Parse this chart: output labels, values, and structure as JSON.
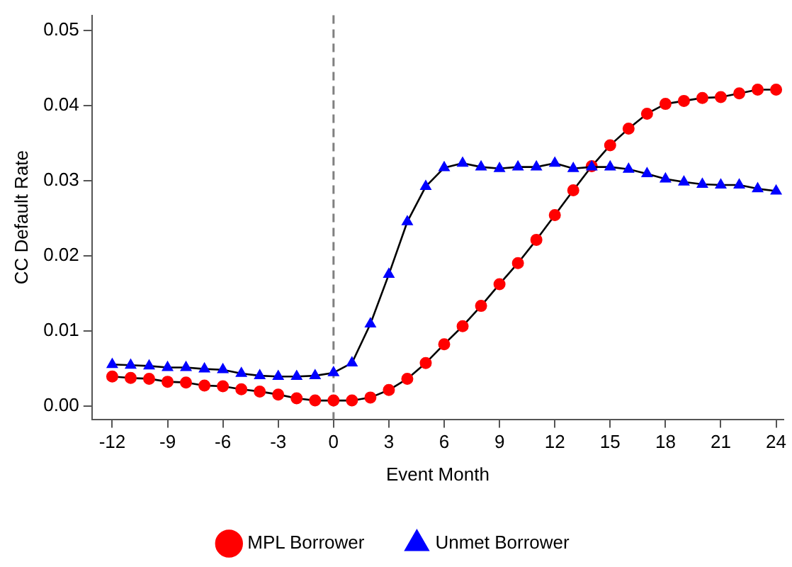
{
  "chart_data": {
    "type": "line",
    "xlabel": "Event Month",
    "ylabel": "CC Default Rate",
    "x": [
      -12,
      -11,
      -10,
      -9,
      -8,
      -7,
      -6,
      -5,
      -4,
      -3,
      -2,
      -1,
      0,
      1,
      2,
      3,
      4,
      5,
      6,
      7,
      8,
      9,
      10,
      11,
      12,
      13,
      14,
      15,
      16,
      17,
      18,
      19,
      20,
      21,
      22,
      23,
      24
    ],
    "series": [
      {
        "name": "MPL Borrower",
        "color": "#ff0000",
        "marker": "circle",
        "values": [
          0.0039,
          0.0037,
          0.0036,
          0.0032,
          0.0031,
          0.0027,
          0.0026,
          0.0022,
          0.0019,
          0.0015,
          0.001,
          0.0007,
          0.0007,
          0.0007,
          0.0011,
          0.0021,
          0.0036,
          0.0057,
          0.0082,
          0.0106,
          0.0133,
          0.0162,
          0.019,
          0.0221,
          0.0254,
          0.0287,
          0.0319,
          0.0347,
          0.0369,
          0.0389,
          0.0402,
          0.0406,
          0.041,
          0.0411,
          0.0416,
          0.0421,
          0.0421
        ]
      },
      {
        "name": "Unmet Borrower",
        "color": "#0000ff",
        "marker": "triangle",
        "values": [
          0.0055,
          0.0054,
          0.0053,
          0.0051,
          0.0051,
          0.0049,
          0.0048,
          0.0043,
          0.004,
          0.0039,
          0.0039,
          0.004,
          0.0044,
          0.0057,
          0.0109,
          0.0175,
          0.0245,
          0.0292,
          0.0317,
          0.0323,
          0.0318,
          0.0316,
          0.0318,
          0.0318,
          0.0323,
          0.0316,
          0.0318,
          0.0318,
          0.0315,
          0.0309,
          0.0302,
          0.0298,
          0.0295,
          0.0294,
          0.0294,
          0.0289,
          0.0286
        ]
      }
    ],
    "xlim": [
      -13.1,
      24.4
    ],
    "xticks": [
      -12,
      -9,
      -6,
      -3,
      0,
      3,
      6,
      9,
      12,
      15,
      18,
      21,
      24
    ],
    "ylim": [
      -0.0018,
      0.052
    ],
    "yticks": [
      {
        "value": 0,
        "label": "0.00"
      },
      {
        "value": 0.01,
        "label": "0.01"
      },
      {
        "value": 0.02,
        "label": "0.02"
      },
      {
        "value": 0.03,
        "label": "0.03"
      },
      {
        "value": 0.04,
        "label": "0.04"
      },
      {
        "value": 0.05,
        "label": "0.05"
      }
    ],
    "ref_lines": [
      {
        "axis": "x",
        "value": 0,
        "color": "#808080",
        "line_style": "dashed"
      }
    ],
    "grid": false,
    "legend": "bottom",
    "line_style": "solid"
  }
}
